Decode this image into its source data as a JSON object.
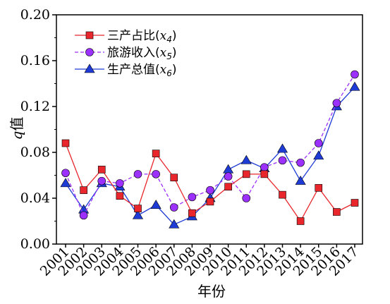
{
  "chart_data": {
    "type": "line",
    "categories": [
      "2001",
      "2002",
      "2003",
      "2004",
      "2005",
      "2006",
      "2007",
      "2008",
      "2009",
      "2010",
      "2011",
      "2012",
      "2013",
      "2014",
      "2015",
      "2016",
      "2017"
    ],
    "xlabel": "年份",
    "ylabel_var": "q",
    "ylabel_suffix": "值",
    "ylim": [
      0,
      0.2
    ],
    "yticks": [
      "0.00",
      "0.04",
      "0.08",
      "0.12",
      "0.16",
      "0.20"
    ],
    "ytick_values": [
      0,
      0.04,
      0.08,
      0.12,
      0.16,
      0.2
    ],
    "legend_position": "top-left",
    "series": [
      {
        "name_prefix": "三产占比(",
        "name_var": "x",
        "name_sub": "4",
        "name_suffix": ")",
        "color": "#e8262c",
        "marker": "square",
        "dash": "solid",
        "values": [
          0.088,
          0.047,
          0.065,
          0.042,
          0.031,
          0.079,
          0.058,
          0.027,
          0.037,
          0.05,
          0.061,
          0.061,
          0.043,
          0.02,
          0.049,
          0.028,
          0.036
        ]
      },
      {
        "name_prefix": "旅游收入(",
        "name_var": "x",
        "name_sub": "5",
        "name_suffix": ")",
        "color": "#9b30ff",
        "marker": "circle",
        "dash": "dashed",
        "values": [
          0.062,
          0.025,
          0.055,
          0.053,
          0.061,
          0.061,
          0.032,
          0.041,
          0.047,
          0.059,
          0.04,
          0.067,
          0.073,
          0.071,
          0.088,
          0.123,
          0.148
        ]
      },
      {
        "name_prefix": "生产总值(",
        "name_var": "x",
        "name_sub": "6",
        "name_suffix": ")",
        "color": "#1f3bd6",
        "marker": "triangle",
        "dash": "solid",
        "values": [
          0.053,
          0.03,
          0.053,
          0.05,
          0.025,
          0.034,
          0.017,
          0.024,
          0.04,
          0.065,
          0.073,
          0.066,
          0.083,
          0.055,
          0.077,
          0.12,
          0.137
        ]
      }
    ]
  }
}
